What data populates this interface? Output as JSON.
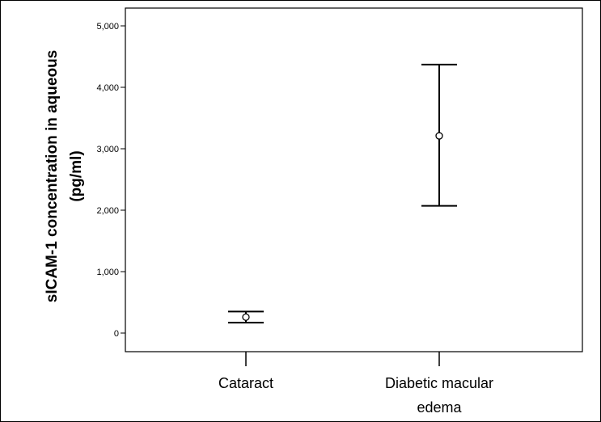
{
  "chart_data": {
    "type": "errorbar",
    "ylabel_lines": [
      "sICAM-1 concentration in aqueous",
      "(pg/ml)"
    ],
    "xlabel": "",
    "categories": [
      {
        "lines": [
          "Cataract"
        ]
      },
      {
        "lines": [
          "Diabetic macular",
          "edema"
        ]
      }
    ],
    "series": [
      {
        "points": [
          {
            "mean": 260,
            "lower": 170,
            "upper": 350
          },
          {
            "mean": 3210,
            "lower": 2070,
            "upper": 4370
          }
        ]
      }
    ],
    "ylim": [
      0,
      5000
    ],
    "yticks": [
      0,
      1000,
      2000,
      3000,
      4000,
      5000
    ],
    "ytick_labels": [
      "0",
      "1,000",
      "2,000",
      "3,000",
      "4,000",
      "5,000"
    ],
    "grid": false,
    "legend": "none"
  }
}
